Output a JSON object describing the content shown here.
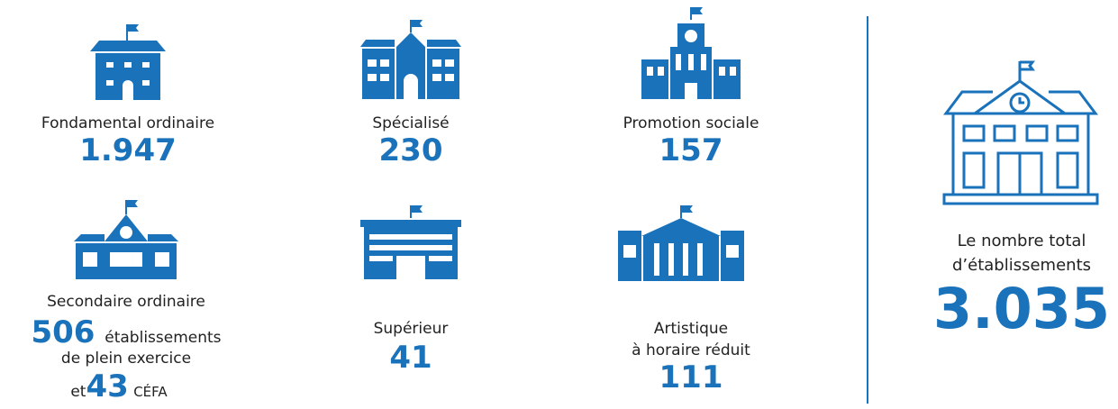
{
  "items": [
    {
      "label": "Fondamental ordinaire",
      "value": "1.947"
    },
    {
      "label": "Spécialisé",
      "value": "230"
    },
    {
      "label": "Promotion sociale",
      "value": "157"
    },
    {
      "label": "Secondaire ordinaire",
      "value": "506",
      "text1": "établissements",
      "text2": "de plein exercice",
      "prefix": "et",
      "value2": "43",
      "text3": "CÉFA"
    },
    {
      "label": "Supérieur",
      "value": "41"
    },
    {
      "label": "Artistique",
      "label2": "à horaire réduit",
      "value": "111"
    }
  ],
  "total": {
    "label": "Le nombre total",
    "label2": "d’établissements",
    "value": "3.035"
  }
}
